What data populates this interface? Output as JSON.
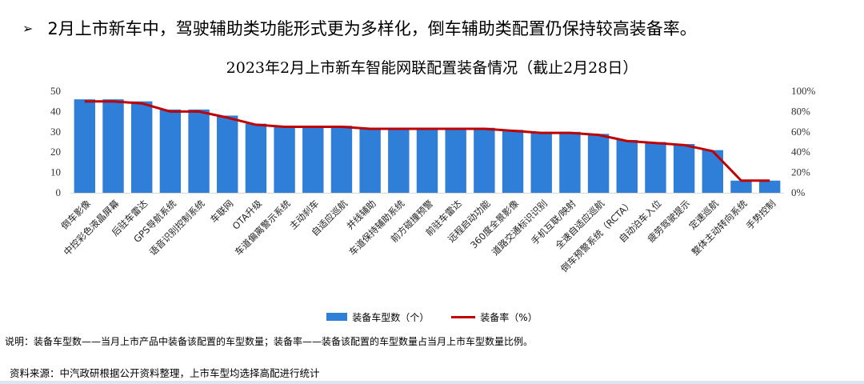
{
  "headline": {
    "bullet": "➢",
    "text": "2月上市新车中，驾驶辅助类功能形式更为多样化，倒车辅助类配置仍保持较高装备率。"
  },
  "chart_data": {
    "type": "bar",
    "title": "2023年2月上市新车智能网联配置装备情况（截止2月28日）",
    "categories": [
      "倒车影像",
      "中控彩色液晶屏幕",
      "后驻车雷达",
      "GPS导航系统",
      "语音识别控制系统",
      "车联网",
      "OTA升级",
      "车道偏离警示系统",
      "主动刹车",
      "自适应巡航",
      "并线辅助",
      "车道保持辅助系统",
      "前方碰撞预警",
      "前驻车雷达",
      "远程启动功能",
      "360度全景影像",
      "道路交通标识识别",
      "手机互联/映射",
      "全速自适应巡航",
      "倒车预警系统（RCTA）",
      "自动泊车入位",
      "疲劳驾驶提示",
      "定速巡航",
      "整体主动转向系统",
      "手势控制"
    ],
    "series": [
      {
        "name": "装备车型数（个）",
        "axis": "left",
        "type": "bar",
        "values": [
          46,
          46,
          45,
          41,
          41,
          38,
          34,
          33,
          33,
          33,
          32,
          32,
          32,
          32,
          32,
          31,
          30,
          30,
          29,
          26,
          25,
          24,
          21,
          6,
          6
        ]
      },
      {
        "name": "装备率（%）",
        "axis": "right",
        "type": "line",
        "values": [
          90,
          90,
          88,
          80,
          80,
          74,
          67,
          65,
          65,
          65,
          63,
          63,
          63,
          63,
          63,
          61,
          59,
          59,
          57,
          51,
          49,
          47,
          41,
          12,
          12
        ]
      }
    ],
    "left_axis": {
      "ylim": [
        0,
        50
      ],
      "ticks": [
        "0",
        "10",
        "20",
        "30",
        "40",
        "50"
      ]
    },
    "right_axis": {
      "ylim": [
        0,
        100
      ],
      "ticks": [
        "0%",
        "20%",
        "40%",
        "60%",
        "80%",
        "100%"
      ]
    },
    "grid": false,
    "legend": "bottom-center",
    "colors": {
      "bar": "#2f7ed8",
      "line": "#c00000"
    }
  },
  "legend": {
    "bar_label": "装备车型数（个）",
    "line_label": "装备率（%）"
  },
  "note": "说明：装备车型数——当月上市产品中装备该配置的车型数量；装备率——装备该配置的车型数量占当月上市车型数量比例。",
  "source": "资料来源：中汽政研根据公开资料整理，上市车型均选择高配进行统计"
}
